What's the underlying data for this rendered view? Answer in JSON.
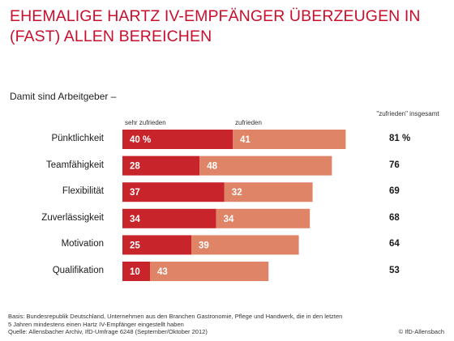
{
  "header": {
    "title": "EHEMALIGE HARTZ IV-EMPFÄNGER ÜBERZEUGEN IN (FAST) ALLEN BEREICHEN",
    "subtitle": "Damit sind Arbeitgeber –"
  },
  "legend": {
    "very_satisfied": "sehr zufrieden",
    "satisfied": "zufrieden",
    "total_head": "\"zufrieden\" insgesamt"
  },
  "colors": {
    "very_satisfied": "#c8242c",
    "satisfied": "#e08468",
    "title": "#c8102e"
  },
  "chart_data": {
    "type": "bar",
    "orientation": "horizontal",
    "stacked": true,
    "categories": [
      "Pünktlichkeit",
      "Teamfähigkeit",
      "Flexibilität",
      "Zuverlässigkeit",
      "Motivation",
      "Qualifikation"
    ],
    "series": [
      {
        "name": "sehr zufrieden",
        "values": [
          40,
          28,
          37,
          34,
          25,
          10
        ],
        "labels": [
          "40 %",
          "28",
          "37",
          "34",
          "25",
          "10"
        ]
      },
      {
        "name": "zufrieden",
        "values": [
          41,
          48,
          32,
          34,
          39,
          43
        ],
        "labels": [
          "41",
          "48",
          "32",
          "34",
          "39",
          "43"
        ]
      }
    ],
    "totals": [
      "81 %",
      "76",
      "69",
      "68",
      "64",
      "53"
    ],
    "title": "EHEMALIGE HARTZ IV-EMPFÄNGER ÜBERZEUGEN IN (FAST) ALLEN BEREICHEN",
    "xlim": [
      0,
      100
    ]
  },
  "footer": {
    "note_line1": "Basis: Bundesrepublik Deutschland, Unternehmen aus den Branchen Gastronomie, Pflege und Handwerk, die in den letzten",
    "note_line2": "5 Jahren mindestens einen Hartz IV-Empfänger eingestellt haben",
    "source": "Quelle: Allensbacher Archiv, IfD-Umfrage 6248 (September/Oktober 2012)",
    "copyright": "© IfD-Allensbach"
  }
}
